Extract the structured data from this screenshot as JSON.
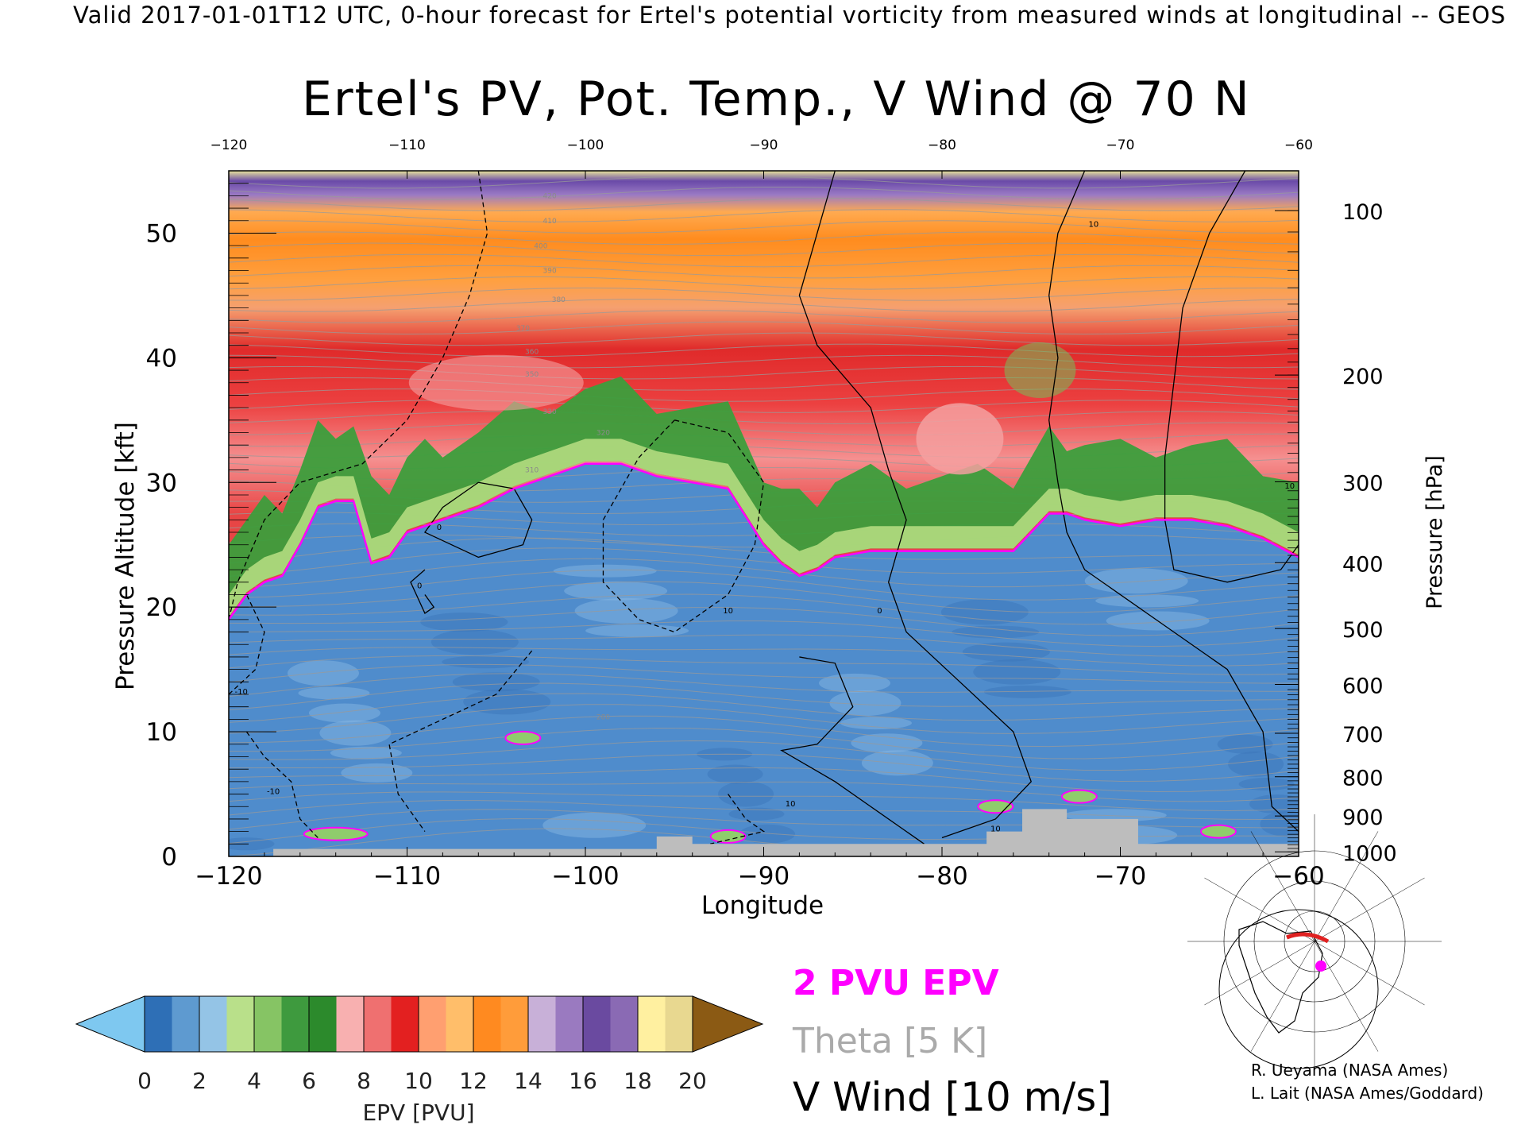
{
  "header": {
    "banner": "Valid 2017-01-01T12 UTC, 0-hour forecast for Ertel's potential vorticity from measured winds at longitudinal -- GEOS"
  },
  "chart_data": {
    "type": "heatmap",
    "title": "Ertel's PV, Pot. Temp., V Wind @ 70 N",
    "xlabel": "Longitude",
    "ylabel": "Pressure Altitude [kft]",
    "ylabel_right": "Pressure [hPa]",
    "xlim": [
      -120,
      -60
    ],
    "ylim": [
      0,
      55
    ],
    "x_ticks": [
      -120,
      -110,
      -100,
      -90,
      -80,
      -70,
      -60
    ],
    "x_ticks_top": [
      -120,
      -110,
      -100,
      -90,
      -80,
      -70,
      -60
    ],
    "y_ticks": [
      0,
      10,
      20,
      30,
      40,
      50
    ],
    "pressure_ticks": [
      1000,
      900,
      800,
      700,
      600,
      500,
      400,
      300,
      200,
      100
    ],
    "pv2_surface": {
      "x": [
        -120,
        -119,
        -118,
        -117,
        -116,
        -115,
        -114,
        -113,
        -112,
        -111,
        -110,
        -109,
        -108,
        -106,
        -104,
        -102,
        -100,
        -98,
        -96,
        -94,
        -92,
        -90,
        -89,
        -88,
        -87,
        -86,
        -84,
        -82,
        -80,
        -78,
        -76,
        -75,
        -74,
        -73,
        -72,
        -70,
        -68,
        -66,
        -64,
        -62,
        -60
      ],
      "y": [
        19,
        21,
        22,
        22.5,
        25,
        28,
        28.5,
        28.5,
        23.5,
        24,
        26,
        26.5,
        27,
        28,
        29.5,
        30.5,
        31.5,
        31.5,
        30.5,
        30,
        29.5,
        25,
        23.5,
        22.5,
        23,
        24,
        24.5,
        24.5,
        24.5,
        24.5,
        24.5,
        26,
        27.5,
        27.5,
        27,
        26.5,
        27,
        27,
        26.5,
        25.5,
        24
      ]
    },
    "pv_layers": [
      {
        "pvu": "0-2",
        "color": "#4a86c4"
      },
      {
        "pvu": "2-6",
        "color": "#3a9a3a"
      },
      {
        "pvu": "6-12",
        "color": "#e83030"
      },
      {
        "pvu": "12-14",
        "color": "#ff8a1a"
      },
      {
        "pvu": "14-18",
        "color": "#6a4aa8"
      },
      {
        "pvu": "18-20",
        "color": "#f2ea90"
      }
    ],
    "theta_labels": [
      {
        "value": "420",
        "x": -102,
        "y": 52.8
      },
      {
        "value": "410",
        "x": -102,
        "y": 50.8
      },
      {
        "value": "400",
        "x": -102.5,
        "y": 48.8
      },
      {
        "value": "390",
        "x": -102,
        "y": 46.8
      },
      {
        "value": "380",
        "x": -101.5,
        "y": 44.5
      },
      {
        "value": "370",
        "x": -103.5,
        "y": 42.2
      },
      {
        "value": "360",
        "x": -103,
        "y": 40.3
      },
      {
        "value": "350",
        "x": -103,
        "y": 38.5
      },
      {
        "value": "330",
        "x": -102,
        "y": 35.5
      },
      {
        "value": "320",
        "x": -99,
        "y": 33.8
      },
      {
        "value": "310",
        "x": -103,
        "y": 30.8
      },
      {
        "value": "280",
        "x": -99,
        "y": 11
      }
    ],
    "v_wind_labels": [
      {
        "value": "0",
        "x": -108.2,
        "y": 26.2
      },
      {
        "value": "0",
        "x": -109.3,
        "y": 21.5
      },
      {
        "value": "-10",
        "x": -119.3,
        "y": 13
      },
      {
        "value": "-10",
        "x": -117.5,
        "y": 5
      },
      {
        "value": "10",
        "x": -71.5,
        "y": 50.5
      },
      {
        "value": "10",
        "x": -92,
        "y": 19.5
      },
      {
        "value": "0",
        "x": -83.5,
        "y": 19.5
      },
      {
        "value": "10",
        "x": -88.5,
        "y": 4
      },
      {
        "value": "10",
        "x": -77,
        "y": 2
      },
      {
        "value": "10",
        "x": -60.5,
        "y": 29.5
      }
    ],
    "colorbar": {
      "label": "EPV [PVU]",
      "ticks": [
        "0",
        "2",
        "4",
        "6",
        "8",
        "10",
        "12",
        "14",
        "16",
        "18",
        "20"
      ],
      "colors": [
        "#2e6fb6",
        "#5e9ad0",
        "#94c4e6",
        "#b9e08a",
        "#86c464",
        "#3e9a3e",
        "#2c8a2c",
        "#f8b0b0",
        "#ef7070",
        "#e32020",
        "#ff9f70",
        "#ffbe6a",
        "#ff8a20",
        "#ff9c3a",
        "#c8b0d8",
        "#9a7ac0",
        "#6a4aa0",
        "#8a6ab4",
        "#fff0a0",
        "#e8d890"
      ],
      "under_color": "#7ec8f0",
      "over_color": "#8b5a14"
    },
    "legend": {
      "placement": "bottom-center",
      "items": [
        {
          "label": "2 PVU EPV",
          "color": "#ff00ff"
        },
        {
          "label": "Theta [5 K]",
          "color": "#aaaaaa"
        },
        {
          "label": "V Wind [10 m/s]",
          "color": "#000000"
        }
      ]
    },
    "inset_map": {
      "description_color": "#ff00ff"
    },
    "credits": [
      "R. Ueyama (NASA Ames)",
      "L. Lait (NASA Ames/Goddard)"
    ]
  }
}
